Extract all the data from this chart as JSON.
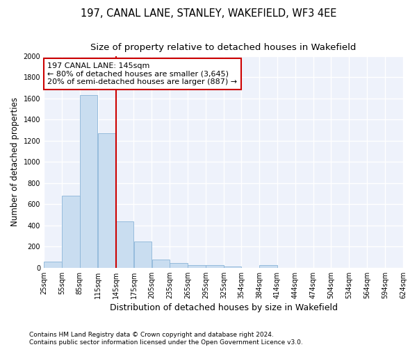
{
  "title": "197, CANAL LANE, STANLEY, WAKEFIELD, WF3 4EE",
  "subtitle": "Size of property relative to detached houses in Wakefield",
  "xlabel": "Distribution of detached houses by size in Wakefield",
  "ylabel": "Number of detached properties",
  "property_size": 145,
  "bin_edges": [
    25,
    55,
    85,
    115,
    145,
    175,
    205,
    235,
    265,
    295,
    325,
    354,
    384,
    414,
    444,
    474,
    504,
    534,
    564,
    594,
    624
  ],
  "bar_heights": [
    60,
    680,
    1630,
    1270,
    440,
    248,
    80,
    47,
    27,
    22,
    10,
    0,
    22,
    0,
    0,
    0,
    0,
    0,
    0,
    0
  ],
  "bar_color": "#c9ddf0",
  "bar_edgecolor": "#8ab4d8",
  "vline_color": "#cc0000",
  "vline_x": 145,
  "annotation_line1": "197 CANAL LANE: 145sqm",
  "annotation_line2": "← 80% of detached houses are smaller (3,645)",
  "annotation_line3": "20% of semi-detached houses are larger (887) →",
  "annotation_box_color": "white",
  "annotation_box_edgecolor": "#cc0000",
  "ylim": [
    0,
    2000
  ],
  "yticks": [
    0,
    200,
    400,
    600,
    800,
    1000,
    1200,
    1400,
    1600,
    1800,
    2000
  ],
  "footer_line1": "Contains HM Land Registry data © Crown copyright and database right 2024.",
  "footer_line2": "Contains public sector information licensed under the Open Government Licence v3.0.",
  "background_color": "#eef2fb",
  "grid_color": "white",
  "title_fontsize": 10.5,
  "subtitle_fontsize": 9.5,
  "annotation_fontsize": 8,
  "tick_label_fontsize": 7,
  "ylabel_fontsize": 8.5,
  "xlabel_fontsize": 9,
  "footer_fontsize": 6.5
}
